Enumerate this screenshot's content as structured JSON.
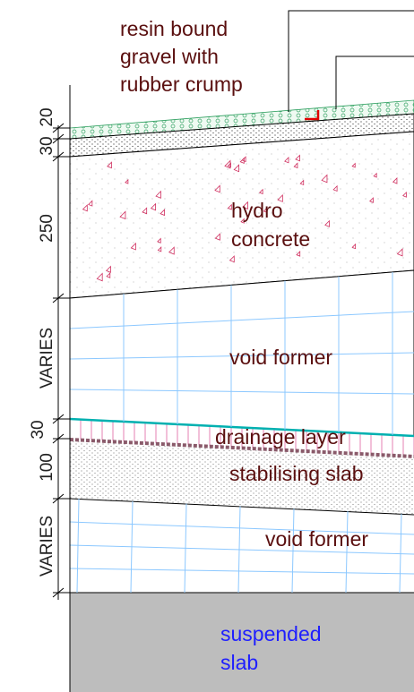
{
  "labels": {
    "resin": [
      "resin bound",
      "gravel with",
      "rubber crump"
    ],
    "hydro": [
      "hydro",
      "concrete"
    ],
    "void_upper": "void former",
    "drainage": "drainage layer",
    "stabilising": "stabilising slab",
    "void_lower": "void former",
    "slab": [
      "suspended",
      "slab"
    ]
  },
  "dimensions": [
    "20",
    "30",
    "250",
    "VARIES",
    "30",
    "100",
    "VARIES"
  ]
}
